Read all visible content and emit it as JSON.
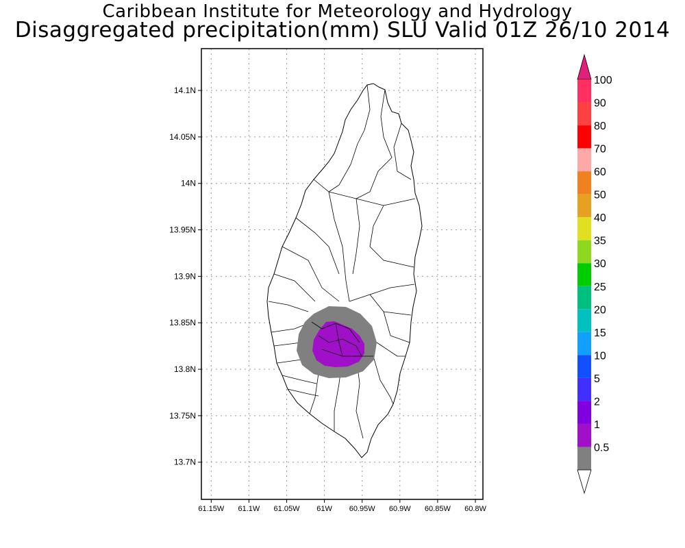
{
  "title": {
    "line1": "Caribbean Institute for Meteorology and Hydrology",
    "line2": "Disaggregated precipitation(mm) SLU Valid 01Z 26/10 2014"
  },
  "map": {
    "lat_labels": [
      "14.1N",
      "14.05N",
      "14N",
      "13.95N",
      "13.9N",
      "13.85N",
      "13.8N",
      "13.75N",
      "13.7N"
    ],
    "lon_labels": [
      "61.15W",
      "61.1W",
      "61.05W",
      "61W",
      "60.95W",
      "60.9W",
      "60.85W",
      "60.8W"
    ],
    "lat_values": [
      14.1,
      14.05,
      14.0,
      13.95,
      13.9,
      13.85,
      13.8,
      13.75,
      13.7
    ],
    "lon_values": [
      -61.15,
      -61.1,
      -61.05,
      -61.0,
      -60.95,
      -60.9,
      -60.85,
      -60.8
    ],
    "lat_range": [
      13.66,
      14.145
    ],
    "lon_range": [
      -61.163,
      -60.79
    ],
    "grid": "dotted",
    "contours": [
      {
        "level": "0.5-1",
        "color": "#808080",
        "center": [
          -60.985,
          13.832
        ]
      },
      {
        "level": "1-2",
        "color": "#a010c8",
        "center": [
          -60.985,
          13.832
        ]
      }
    ]
  },
  "colorbar": {
    "labels": [
      "100",
      "90",
      "80",
      "70",
      "60",
      "50",
      "40",
      "35",
      "30",
      "25",
      "20",
      "15",
      "10",
      "5",
      "2",
      "1",
      "0.5"
    ],
    "colors": [
      "#ff3060",
      "#ff4040",
      "#ff0000",
      "#ffa8a8",
      "#f08020",
      "#e8a020",
      "#e0e020",
      "#90d820",
      "#00cc00",
      "#00c080",
      "#00c0c0",
      "#10a0ff",
      "#1050ff",
      "#4030ff",
      "#8000e0",
      "#a010c8",
      "#808080"
    ],
    "top_arrow_color": "#e0207a",
    "bottom_arrow_color": "#ffffff"
  }
}
